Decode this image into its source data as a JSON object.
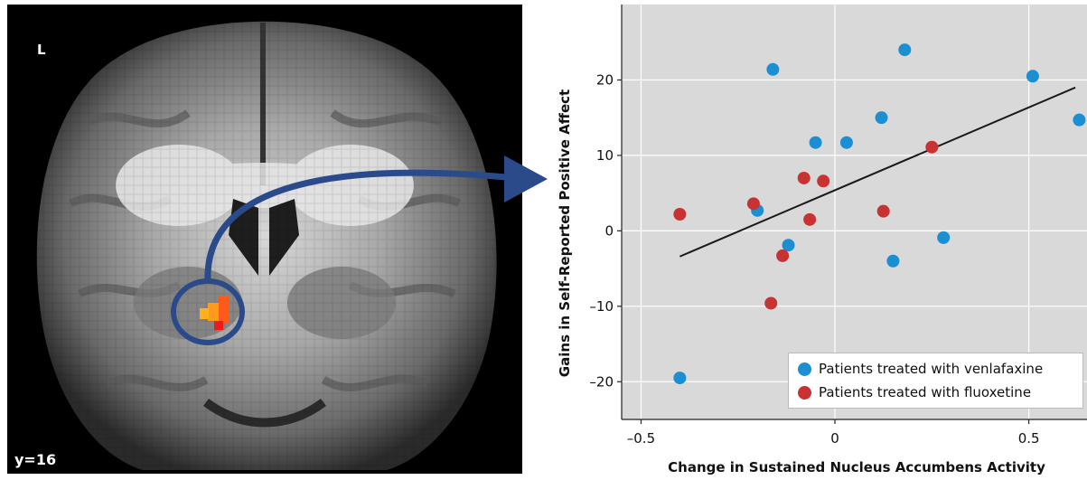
{
  "brain": {
    "orientation_label": "L",
    "slice_label": "y=16"
  },
  "chart_data": {
    "type": "scatter",
    "xlabel": "Change in Sustained Nucleus Accumbens Activity",
    "ylabel": "Gains in Self-Reported Positive Affect",
    "xlim": [
      -0.55,
      0.65
    ],
    "ylim": [
      -25,
      30
    ],
    "x_ticks": [
      -0.5,
      0,
      0.5
    ],
    "x_tick_labels": [
      "–0.5",
      "0",
      "0.5"
    ],
    "y_ticks": [
      -20,
      -10,
      0,
      10,
      20
    ],
    "y_tick_labels": [
      "–20",
      "–10",
      "0",
      "10",
      "20"
    ],
    "grid": true,
    "legend_position": "bottom-right",
    "series": [
      {
        "name": "Patients treated with venlafaxine",
        "color": "#1b8fd2",
        "points": [
          [
            -0.4,
            -19.5
          ],
          [
            -0.2,
            2.7
          ],
          [
            -0.16,
            21.4
          ],
          [
            -0.12,
            -1.9
          ],
          [
            -0.05,
            11.7
          ],
          [
            0.03,
            11.7
          ],
          [
            0.12,
            15.0
          ],
          [
            0.15,
            -4.0
          ],
          [
            0.18,
            24.0
          ],
          [
            0.28,
            -0.9
          ],
          [
            0.51,
            20.5
          ],
          [
            0.63,
            14.7
          ]
        ]
      },
      {
        "name": "Patients treated with fluoxetine",
        "color": "#c83232",
        "points": [
          [
            -0.4,
            2.2
          ],
          [
            -0.21,
            3.6
          ],
          [
            -0.165,
            -9.6
          ],
          [
            -0.135,
            -3.3
          ],
          [
            -0.08,
            7.0
          ],
          [
            -0.065,
            1.5
          ],
          [
            -0.03,
            6.6
          ],
          [
            0.125,
            2.6
          ],
          [
            0.25,
            11.1
          ]
        ]
      }
    ],
    "trend_line": {
      "x": [
        -0.4,
        0.62
      ],
      "y": [
        -3.4,
        19.0
      ],
      "color": "#1a1a1a"
    }
  }
}
